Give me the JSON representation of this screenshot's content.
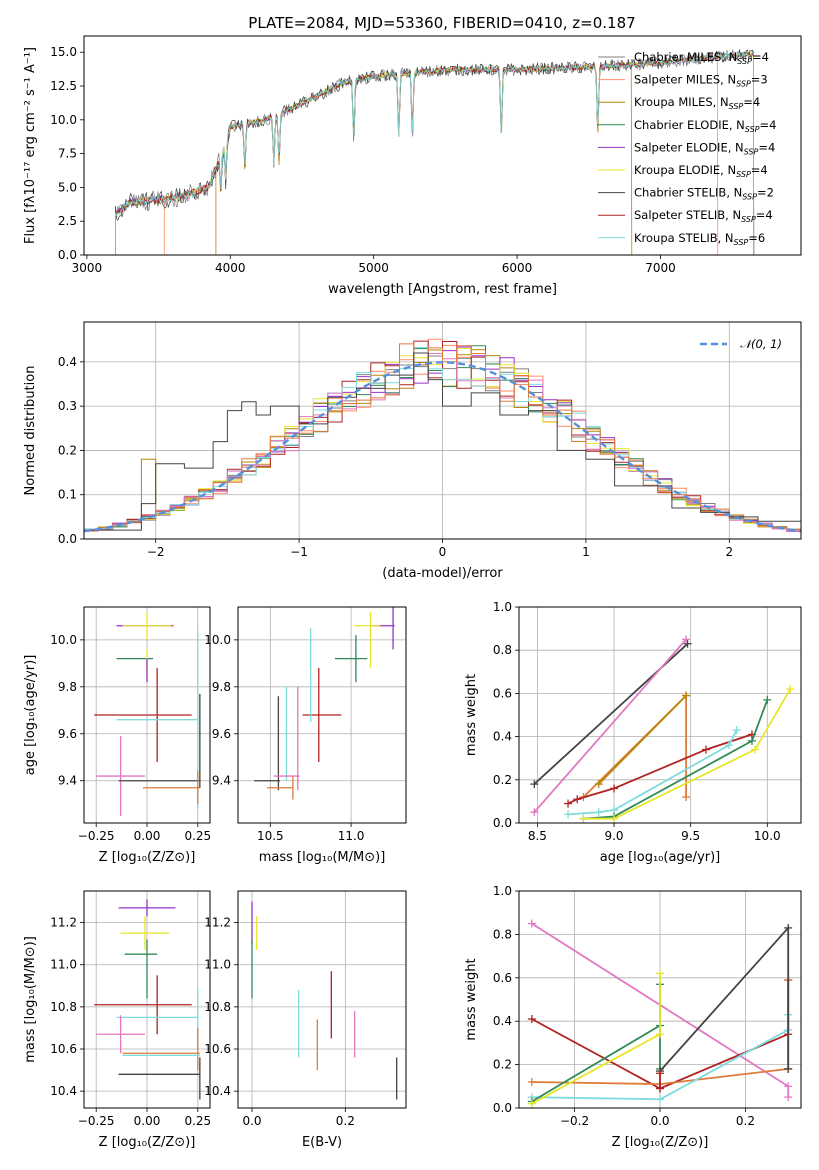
{
  "colors": {
    "Chabrier MILES": "#808080",
    "Salpeter MILES": "#ff8c69",
    "Kroupa MILES": "#b8860b",
    "Chabrier ELODIE": "#2e8b57",
    "Salpeter ELODIE": "#9932cc",
    "Kroupa ELODIE": "#e6e629",
    "Chabrier STELIB": "#444444",
    "Salpeter STELIB": "#b22222",
    "Kroupa STELIB": "#7fdcdc",
    "pinkish": "#e377c2",
    "orange": "#e07b39",
    "gauss": "#5590dd"
  },
  "chart_data": [
    {
      "id": "spectrum",
      "type": "line",
      "title": "PLATE=2084, MJD=53360, FIBERID=0410, z=0.187",
      "xlabel": "wavelength [Angstrom, rest frame]",
      "ylabel": "Flux [fλ10⁻¹⁷ erg cm⁻² s⁻¹ A⁻¹]",
      "xlim": [
        2980,
        7980
      ],
      "ylim": [
        0,
        16.2
      ],
      "xticks": [
        3000,
        4000,
        5000,
        6000,
        7000
      ],
      "yticks": [
        0.0,
        2.5,
        5.0,
        7.5,
        10.0,
        12.5,
        15.0
      ],
      "legend_position": "right",
      "legend": [
        {
          "name": "Chabrier MILES",
          "label": "Chabrier MILES, N_SSP=4",
          "nssp": "4"
        },
        {
          "name": "Salpeter MILES",
          "label": "Salpeter MILES, N_SSP=3",
          "nssp": "3"
        },
        {
          "name": "Kroupa MILES",
          "label": "Kroupa MILES, N_SSP=4",
          "nssp": "4"
        },
        {
          "name": "Chabrier ELODIE",
          "label": "Chabrier ELODIE, N_SSP=4",
          "nssp": "4"
        },
        {
          "name": "Salpeter ELODIE",
          "label": "Salpeter ELODIE, N_SSP=4",
          "nssp": "4"
        },
        {
          "name": "Kroupa ELODIE",
          "label": "Kroupa ELODIE, N_SSP=4",
          "nssp": "4"
        },
        {
          "name": "Chabrier STELIB",
          "label": "Chabrier STELIB, N_SSP=2",
          "nssp": "2"
        },
        {
          "name": "Salpeter STELIB",
          "label": "Salpeter STELIB, N_SSP=4",
          "nssp": "4"
        },
        {
          "name": "Kroupa STELIB",
          "label": "Kroupa STELIB, N_SSP=6",
          "nssp": "6"
        }
      ],
      "continuum": [
        [
          3200,
          3.0
        ],
        [
          3300,
          3.9
        ],
        [
          3500,
          4.1
        ],
        [
          3650,
          4.3
        ],
        [
          3850,
          5.0
        ],
        [
          3950,
          7.8
        ],
        [
          4000,
          9.5
        ],
        [
          4250,
          10.0
        ],
        [
          4500,
          11.2
        ],
        [
          4800,
          12.8
        ],
        [
          5000,
          13.2
        ],
        [
          5500,
          13.7
        ],
        [
          6000,
          13.7
        ],
        [
          6500,
          13.9
        ],
        [
          7000,
          14.2
        ],
        [
          7500,
          14.8
        ],
        [
          7650,
          14.8
        ]
      ],
      "absorption_lines": [
        3934,
        3969,
        4102,
        4304,
        4340,
        4861,
        5175,
        5270,
        5890,
        6563
      ]
    },
    {
      "id": "residuals",
      "type": "histogram",
      "xlabel": "(data-model)/error",
      "ylabel": "Normed distribution",
      "xlim": [
        -2.5,
        2.5
      ],
      "ylim": [
        0,
        0.49
      ],
      "xticks": [
        -2,
        -1,
        0,
        1,
        2
      ],
      "yticks": [
        0.0,
        0.1,
        0.2,
        0.3,
        0.4
      ],
      "grid": true,
      "legend_position": "top-right",
      "gauss_label": "𝒩(0, 1)",
      "highlight": {
        "series": "Chabrier STELIB",
        "points": [
          [
            -2.5,
            0.02
          ],
          [
            -2.1,
            0.08
          ],
          [
            -2.0,
            0.17
          ],
          [
            -1.8,
            0.16
          ],
          [
            -1.6,
            0.22
          ],
          [
            -1.5,
            0.29
          ],
          [
            -1.4,
            0.31
          ],
          [
            -1.3,
            0.28
          ],
          [
            -1.2,
            0.3
          ],
          [
            -1.0,
            0.26
          ],
          [
            -0.8,
            0.32
          ],
          [
            -0.6,
            0.34
          ],
          [
            -0.4,
            0.37
          ],
          [
            -0.2,
            0.42
          ],
          [
            -0.1,
            0.36
          ],
          [
            0.0,
            0.3
          ],
          [
            0.2,
            0.33
          ],
          [
            0.4,
            0.28
          ],
          [
            0.6,
            0.29
          ],
          [
            0.8,
            0.2
          ],
          [
            1.0,
            0.18
          ],
          [
            1.2,
            0.12
          ],
          [
            1.4,
            0.12
          ],
          [
            1.6,
            0.07
          ],
          [
            1.8,
            0.06
          ],
          [
            2.0,
            0.05
          ],
          [
            2.2,
            0.04
          ],
          [
            2.5,
            0.03
          ]
        ]
      }
    },
    {
      "id": "age_vs_Z",
      "type": "errorbar",
      "xlabel": "Z [log₁₀(Z/Z⊙)]",
      "ylabel": "age [log₁₀(age/yr)]",
      "xlim": [
        -0.31,
        0.31
      ],
      "ylim": [
        9.22,
        10.14
      ],
      "xticks": [
        -0.25,
        0.0,
        0.25
      ],
      "yticks": [
        9.4,
        9.6,
        9.8,
        10.0
      ],
      "grid": true,
      "points": [
        {
          "x": -0.01,
          "y": 10.06,
          "xerr": 0.14,
          "yerr": 0.0,
          "color": "Salpeter ELODIE"
        },
        {
          "x": 0.0,
          "y": 10.06,
          "xerr": 0.12,
          "yerr": 0.06,
          "color": "Kroupa ELODIE"
        },
        {
          "x": -0.06,
          "y": 9.92,
          "xerr": 0.09,
          "yerr": 0.0,
          "color": "Chabrier ELODIE"
        },
        {
          "x": 0.0,
          "y": 9.9,
          "xerr": 0.0,
          "yerr": 0.06,
          "color": "Kroupa ELODIE"
        },
        {
          "x": -0.02,
          "y": 9.68,
          "xerr": 0.24,
          "yerr": 0.0,
          "color": "Salpeter STELIB"
        },
        {
          "x": 0.05,
          "y": 9.68,
          "xerr": 0.0,
          "yerr": 0.2,
          "color": "Salpeter STELIB"
        },
        {
          "x": 0.25,
          "y": 9.66,
          "xerr": 0.0,
          "yerr": 0.38,
          "color": "Kroupa STELIB"
        },
        {
          "x": 0.05,
          "y": 9.66,
          "xerr": 0.2,
          "yerr": 0.0,
          "color": "Kroupa STELIB"
        },
        {
          "x": -0.13,
          "y": 9.42,
          "xerr": 0.12,
          "yerr": 0.17,
          "color": "pinkish"
        },
        {
          "x": 0.06,
          "y": 9.4,
          "xerr": 0.2,
          "yerr": 0.0,
          "color": "Chabrier STELIB"
        },
        {
          "x": 0.25,
          "y": 9.37,
          "xerr": 0.0,
          "yerr": 0.07,
          "color": "orange"
        },
        {
          "x": 0.12,
          "y": 9.37,
          "xerr": 0.14,
          "yerr": 0.0,
          "color": "orange"
        },
        {
          "x": 0.26,
          "y": 9.57,
          "xerr": 0.0,
          "yerr": 0.2,
          "color": "Chabrier STELIB"
        },
        {
          "x": 0.0,
          "y": 9.87,
          "xerr": 0.0,
          "yerr": 0.05,
          "color": "Salpeter ELODIE"
        }
      ]
    },
    {
      "id": "age_vs_mass",
      "type": "errorbar",
      "xlabel": "mass [log₁₀(M/M⊙)]",
      "ylabel": "",
      "xlim": [
        10.3,
        11.34
      ],
      "ylim": [
        9.22,
        10.14
      ],
      "xticks": [
        10.5,
        11.0
      ],
      "yticks": [
        9.4,
        9.6,
        9.8,
        10.0
      ],
      "grid": true,
      "points": [
        {
          "x": 11.2,
          "y": 10.06,
          "xerr": 0.07,
          "yerr": 0.0,
          "color": "Salpeter ELODIE"
        },
        {
          "x": 11.26,
          "y": 10.06,
          "xerr": 0.0,
          "yerr": 0.1,
          "color": "Salpeter ELODIE"
        },
        {
          "x": 11.1,
          "y": 10.06,
          "xerr": 0.08,
          "yerr": 0.0,
          "color": "Kroupa ELODIE"
        },
        {
          "x": 11.12,
          "y": 10.0,
          "xerr": 0.0,
          "yerr": 0.12,
          "color": "Kroupa ELODIE"
        },
        {
          "x": 11.0,
          "y": 9.92,
          "xerr": 0.1,
          "yerr": 0.0,
          "color": "Chabrier ELODIE"
        },
        {
          "x": 11.03,
          "y": 9.92,
          "xerr": 0.0,
          "yerr": 0.1,
          "color": "Chabrier ELODIE"
        },
        {
          "x": 10.82,
          "y": 9.68,
          "xerr": 0.12,
          "yerr": 0.0,
          "color": "Salpeter STELIB"
        },
        {
          "x": 10.8,
          "y": 9.68,
          "xerr": 0.0,
          "yerr": 0.2,
          "color": "Salpeter STELIB"
        },
        {
          "x": 10.75,
          "y": 9.85,
          "xerr": 0.0,
          "yerr": 0.2,
          "color": "Kroupa STELIB"
        },
        {
          "x": 10.67,
          "y": 9.58,
          "xerr": 0.0,
          "yerr": 0.22,
          "color": "pinkish"
        },
        {
          "x": 10.6,
          "y": 9.6,
          "xerr": 0.0,
          "yerr": 0.2,
          "color": "Kroupa STELIB"
        },
        {
          "x": 10.55,
          "y": 9.56,
          "xerr": 0.0,
          "yerr": 0.2,
          "color": "Chabrier STELIB"
        },
        {
          "x": 10.48,
          "y": 9.4,
          "xerr": 0.08,
          "yerr": 0.0,
          "color": "Chabrier STELIB"
        },
        {
          "x": 10.6,
          "y": 9.42,
          "xerr": 0.08,
          "yerr": 0.0,
          "color": "pinkish"
        },
        {
          "x": 10.56,
          "y": 9.37,
          "xerr": 0.08,
          "yerr": 0.0,
          "color": "orange"
        },
        {
          "x": 10.64,
          "y": 9.37,
          "xerr": 0.0,
          "yerr": 0.05,
          "color": "orange"
        }
      ]
    },
    {
      "id": "mass_weight_vs_age",
      "type": "line",
      "xlabel": "age [log₁₀(age/yr)]",
      "ylabel": "mass weight",
      "xlim": [
        8.38,
        10.22
      ],
      "ylim": [
        0,
        1
      ],
      "xticks": [
        8.5,
        9.0,
        9.5,
        10.0
      ],
      "yticks": [
        0.0,
        0.2,
        0.4,
        0.6,
        0.8,
        1.0
      ],
      "grid": true,
      "series": [
        {
          "color": "Chabrier STELIB",
          "x": [
            8.48,
            9.48
          ],
          "y": [
            0.18,
            0.83
          ]
        },
        {
          "color": "pinkish",
          "x": [
            8.48,
            9.47
          ],
          "y": [
            0.05,
            0.85
          ]
        },
        {
          "color": "orange",
          "x": [
            8.8,
            9.47,
            9.47
          ],
          "y": [
            0.12,
            0.59,
            0.12
          ]
        },
        {
          "color": "Kroupa MILES",
          "x": [
            8.9,
            9.47
          ],
          "y": [
            0.18,
            0.59
          ]
        },
        {
          "color": "Salpeter STELIB",
          "x": [
            8.7,
            8.76,
            9.0,
            9.6,
            9.9
          ],
          "y": [
            0.09,
            0.11,
            0.16,
            0.34,
            0.41
          ]
        },
        {
          "color": "Kroupa STELIB",
          "x": [
            8.7,
            8.9,
            9.0,
            9.75,
            9.8
          ],
          "y": [
            0.04,
            0.05,
            0.06,
            0.36,
            0.43
          ]
        },
        {
          "color": "Chabrier ELODIE",
          "x": [
            8.8,
            9.0,
            9.9,
            10.0
          ],
          "y": [
            0.02,
            0.03,
            0.38,
            0.57
          ]
        },
        {
          "color": "Kroupa ELODIE",
          "x": [
            8.8,
            9.0,
            9.92,
            10.15
          ],
          "y": [
            0.02,
            0.02,
            0.34,
            0.62
          ]
        }
      ]
    },
    {
      "id": "mass_vs_Z",
      "type": "errorbar",
      "xlabel": "Z [log₁₀(Z/Z⊙)]",
      "ylabel": "mass [log₁₀(M/M⊙)]",
      "xlim": [
        -0.31,
        0.31
      ],
      "ylim": [
        10.32,
        11.35
      ],
      "xticks": [
        -0.25,
        0.0,
        0.25
      ],
      "yticks": [
        10.4,
        10.6,
        10.8,
        11.0,
        11.2
      ],
      "grid": true,
      "points": [
        {
          "x": 0.0,
          "y": 11.27,
          "xerr": 0.14,
          "yerr": 0.04,
          "color": "Salpeter ELODIE"
        },
        {
          "x": -0.01,
          "y": 11.15,
          "xerr": 0.12,
          "yerr": 0.08,
          "color": "Kroupa ELODIE"
        },
        {
          "x": -0.03,
          "y": 11.05,
          "xerr": 0.08,
          "yerr": 0.0,
          "color": "Chabrier ELODIE"
        },
        {
          "x": 0.0,
          "y": 10.98,
          "xerr": 0.0,
          "yerr": 0.14,
          "color": "Chabrier ELODIE"
        },
        {
          "x": -0.02,
          "y": 10.81,
          "xerr": 0.24,
          "yerr": 0.0,
          "color": "Salpeter STELIB"
        },
        {
          "x": 0.05,
          "y": 10.81,
          "xerr": 0.0,
          "yerr": 0.14,
          "color": "Salpeter STELIB"
        },
        {
          "x": 0.25,
          "y": 10.75,
          "xerr": 0.0,
          "yerr": 0.14,
          "color": "Kroupa STELIB"
        },
        {
          "x": 0.05,
          "y": 10.75,
          "xerr": 0.2,
          "yerr": 0.0,
          "color": "Kroupa STELIB"
        },
        {
          "x": -0.13,
          "y": 10.67,
          "xerr": 0.12,
          "yerr": 0.09,
          "color": "pinkish"
        },
        {
          "x": 0.07,
          "y": 10.58,
          "xerr": 0.19,
          "yerr": 0.0,
          "color": "orange"
        },
        {
          "x": 0.25,
          "y": 10.6,
          "xerr": 0.0,
          "yerr": 0.1,
          "color": "orange"
        },
        {
          "x": 0.07,
          "y": 10.57,
          "xerr": 0.19,
          "yerr": 0.0,
          "color": "Kroupa STELIB"
        },
        {
          "x": 0.06,
          "y": 10.48,
          "xerr": 0.2,
          "yerr": 0.0,
          "color": "Chabrier STELIB"
        },
        {
          "x": 0.26,
          "y": 10.46,
          "xerr": 0.0,
          "yerr": 0.1,
          "color": "Chabrier STELIB"
        }
      ]
    },
    {
      "id": "mass_vs_ebv",
      "type": "errorbar",
      "xlabel": "E(B-V)",
      "ylabel": "",
      "xlim": [
        -0.03,
        0.33
      ],
      "ylim": [
        10.32,
        11.35
      ],
      "xticks": [
        0.0,
        0.2
      ],
      "yticks": [
        10.4,
        10.6,
        10.8,
        11.0,
        11.2
      ],
      "grid": true,
      "points": [
        {
          "x": 0.0,
          "y": 11.2,
          "xerr": 0.0,
          "yerr": 0.1,
          "color": "Salpeter ELODIE"
        },
        {
          "x": 0.01,
          "y": 11.15,
          "xerr": 0.0,
          "yerr": 0.08,
          "color": "Kroupa ELODIE"
        },
        {
          "x": 0.0,
          "y": 10.98,
          "xerr": 0.0,
          "yerr": 0.14,
          "color": "Chabrier ELODIE"
        },
        {
          "x": 0.1,
          "y": 10.72,
          "xerr": 0.0,
          "yerr": 0.16,
          "color": "Kroupa STELIB"
        },
        {
          "x": 0.14,
          "y": 10.62,
          "xerr": 0.0,
          "yerr": 0.12,
          "color": "orange"
        },
        {
          "x": 0.17,
          "y": 10.81,
          "xerr": 0.0,
          "yerr": 0.16,
          "color": "Salpeter STELIB"
        },
        {
          "x": 0.22,
          "y": 10.67,
          "xerr": 0.0,
          "yerr": 0.11,
          "color": "pinkish"
        },
        {
          "x": 0.31,
          "y": 10.46,
          "xerr": 0.0,
          "yerr": 0.1,
          "color": "Chabrier STELIB"
        }
      ]
    },
    {
      "id": "mass_weight_vs_Z",
      "type": "line",
      "xlabel": "Z [log₁₀(Z/Z⊙)]",
      "ylabel": "mass weight",
      "xlim": [
        -0.33,
        0.33
      ],
      "ylim": [
        0,
        1
      ],
      "xticks": [
        -0.2,
        0.0,
        0.2
      ],
      "yticks": [
        0.0,
        0.2,
        0.4,
        0.6,
        0.8,
        1.0
      ],
      "grid": true,
      "series": [
        {
          "color": "pinkish",
          "x": [
            -0.3,
            0.3,
            0.3
          ],
          "y": [
            0.85,
            0.1,
            0.05
          ]
        },
        {
          "color": "Salpeter STELIB",
          "x": [
            -0.3,
            0.0,
            0.3,
            0.3
          ],
          "y": [
            0.41,
            0.09,
            0.34,
            0.59
          ]
        },
        {
          "color": "orange",
          "x": [
            -0.3,
            0.0,
            0.3,
            0.3
          ],
          "y": [
            0.12,
            0.11,
            0.18,
            0.59
          ]
        },
        {
          "color": "Kroupa STELIB",
          "x": [
            -0.3,
            0.0,
            0.3,
            0.3
          ],
          "y": [
            0.05,
            0.04,
            0.36,
            0.43
          ]
        },
        {
          "color": "Chabrier ELODIE",
          "x": [
            -0.3,
            0.0,
            0.0,
            0.0
          ],
          "y": [
            0.03,
            0.38,
            0.57,
            0.18
          ]
        },
        {
          "color": "Kroupa ELODIE",
          "x": [
            -0.3,
            0.0,
            0.0
          ],
          "y": [
            0.02,
            0.34,
            0.62
          ]
        },
        {
          "color": "Chabrier STELIB",
          "x": [
            0.0,
            0.3,
            0.3
          ],
          "y": [
            0.17,
            0.83,
            0.18
          ]
        },
        {
          "color": "Salpeter STELIB",
          "x": [
            0.0,
            0.0
          ],
          "y": [
            0.09,
            0.16
          ]
        }
      ]
    }
  ]
}
